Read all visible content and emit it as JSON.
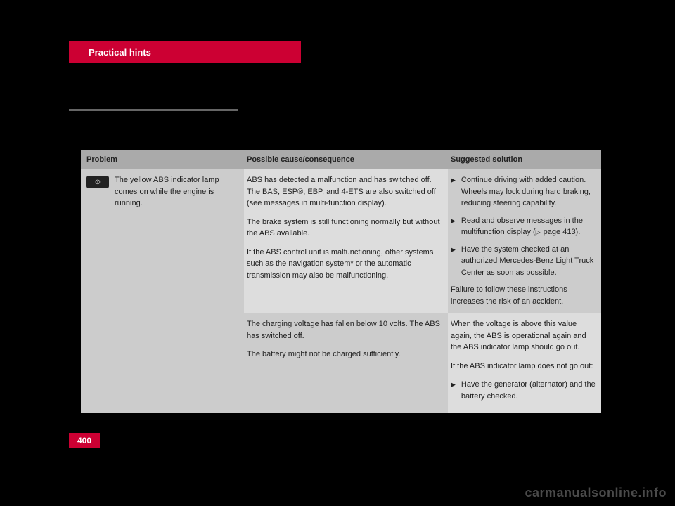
{
  "header": {
    "tab_label": "Practical hints"
  },
  "table": {
    "headers": {
      "problem": "Problem",
      "cause": "Possible cause/consequence",
      "solution": "Suggested solution"
    },
    "row1": {
      "problem": "The yellow ABS indicator lamp comes on while the engine is running.",
      "cause_p1": "ABS has detected a malfunction and has switched off. The BAS, ESP®, EBP, and 4-ETS are also switched off (see messages in multi-function display).",
      "cause_p2": "The brake system is still functioning normally but without the ABS available.",
      "cause_p3": "If the ABS control unit is malfunctioning, other systems such as the navigation system* or the automatic transmission may also be malfunctioning.",
      "solution_b1": "Continue driving with added caution. Wheels may lock during hard braking, reducing steering capability.",
      "solution_b2": "Read and observe messages in the multifunction display (",
      "solution_b2_ref": " page 413).",
      "solution_b3": "Have the system checked at an authorized Mercedes-Benz Light Truck Center as soon as possible.",
      "solution_p1": "Failure to follow these instructions increases the risk of an accident."
    },
    "row2": {
      "cause_p1": "The charging voltage has fallen below 10 volts. The ABS has switched off.",
      "cause_p2": "The battery might not be charged sufficiently.",
      "solution_p1": "When the voltage is above this value again, the ABS is operational again and the ABS indicator lamp should go out.",
      "solution_p2": "If the ABS indicator lamp does not go out:",
      "solution_b1": "Have the generator (alternator) and the battery checked."
    }
  },
  "page_number": "400",
  "watermark": "carmanualsonline.info",
  "colors": {
    "brand_red": "#cc0033",
    "background": "#000000",
    "header_gray": "#aaaaaa",
    "light_gray": "#cccccc",
    "lighter_gray": "#dddddd"
  }
}
